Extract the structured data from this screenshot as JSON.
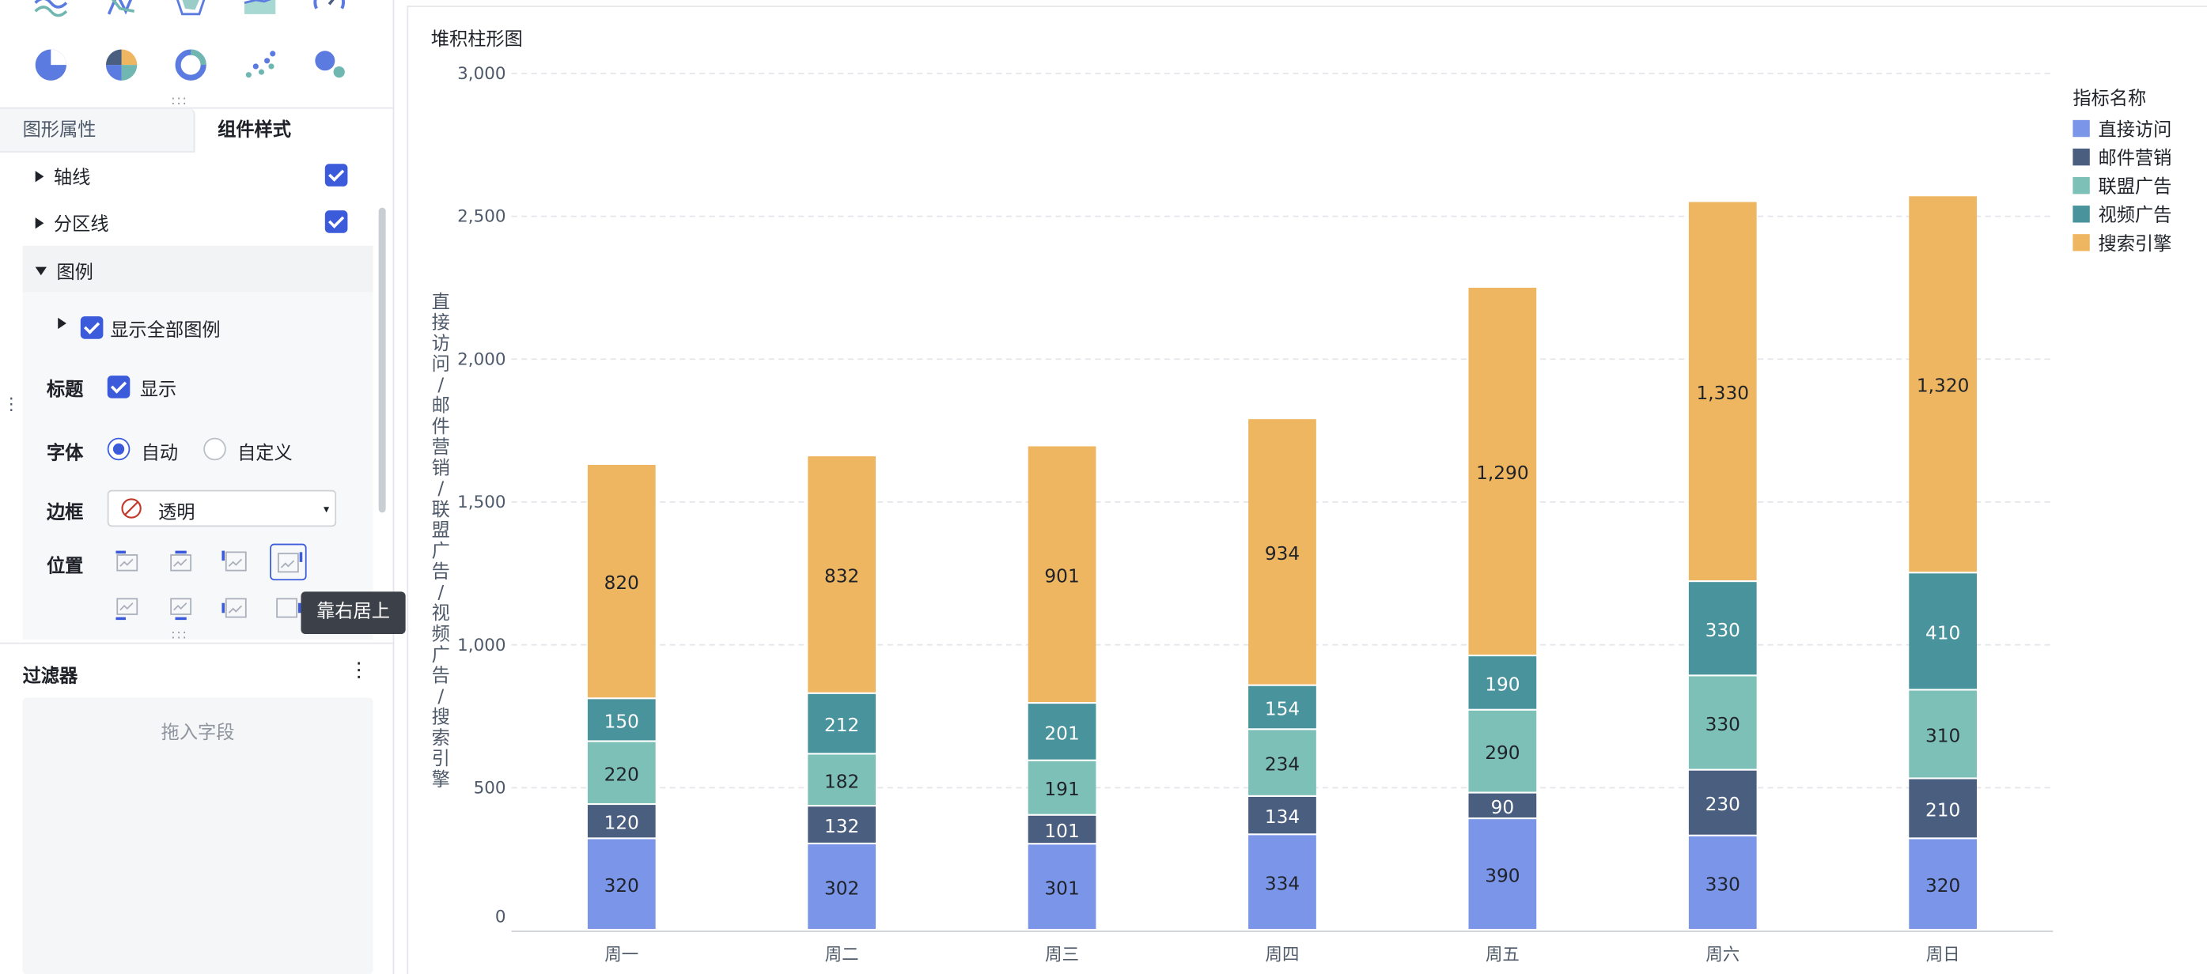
{
  "colors": {
    "accent": "#3b5bdb",
    "direct": "#7b95e8",
    "email": "#4a5e80",
    "union": "#7dc0b7",
    "video": "#48939c",
    "search": "#eeb660"
  },
  "chart_types": [
    "wave-line-chart",
    "radial-line-chart",
    "radar-chart",
    "area-chart",
    "gauge-chart",
    "pie-chart",
    "multi-pie-chart",
    "donut-chart",
    "scatter-chart",
    "bubble-chart"
  ],
  "panel": {
    "tabs": {
      "shape": "图形属性",
      "style": "组件样式"
    },
    "axis": "轴线",
    "split": "分区线",
    "legend": "图例",
    "show_all": "显示全部图例",
    "title_label": "标题",
    "title_show": "显示",
    "font_label": "字体",
    "font_auto": "自动",
    "font_custom": "自定义",
    "border_label": "边框",
    "border_value": "透明",
    "position_label": "位置",
    "tooltip": "靠右居上",
    "filter": "过滤器",
    "drop_hint": "拖入字段"
  },
  "chart_data": {
    "type": "bar",
    "stacked": true,
    "title": "堆积柱形图",
    "ylabel": "直接访问/邮件营销/联盟广告/视频广告/搜索引擎",
    "legend_title": "指标名称",
    "legend_position": "top-right",
    "ylim": [
      0,
      3000
    ],
    "yticks": [
      "0",
      "500",
      "1,000",
      "1,500",
      "2,000",
      "2,500",
      "3,000"
    ],
    "categories": [
      "周一",
      "周二",
      "周三",
      "周四",
      "周五",
      "周六",
      "周日"
    ],
    "series": [
      {
        "name": "直接访问",
        "values": [
          320,
          302,
          301,
          334,
          390,
          330,
          320
        ],
        "labels": [
          "320",
          "302",
          "301",
          "334",
          "390",
          "330",
          "320"
        ]
      },
      {
        "name": "邮件营销",
        "values": [
          120,
          132,
          101,
          134,
          90,
          230,
          210
        ],
        "labels": [
          "120",
          "132",
          "101",
          "134",
          "90",
          "230",
          "210"
        ]
      },
      {
        "name": "联盟广告",
        "values": [
          220,
          182,
          191,
          234,
          290,
          330,
          310
        ],
        "labels": [
          "220",
          "182",
          "191",
          "234",
          "290",
          "330",
          "310"
        ]
      },
      {
        "name": "视频广告",
        "values": [
          150,
          212,
          201,
          154,
          190,
          330,
          410
        ],
        "labels": [
          "150",
          "212",
          "201",
          "154",
          "190",
          "330",
          "410"
        ]
      },
      {
        "name": "搜索引擎",
        "values": [
          820,
          832,
          901,
          934,
          1290,
          1330,
          1320
        ],
        "labels": [
          "820",
          "832",
          "901",
          "934",
          "1,290",
          "1,330",
          "1,320"
        ]
      }
    ],
    "grid": true
  }
}
